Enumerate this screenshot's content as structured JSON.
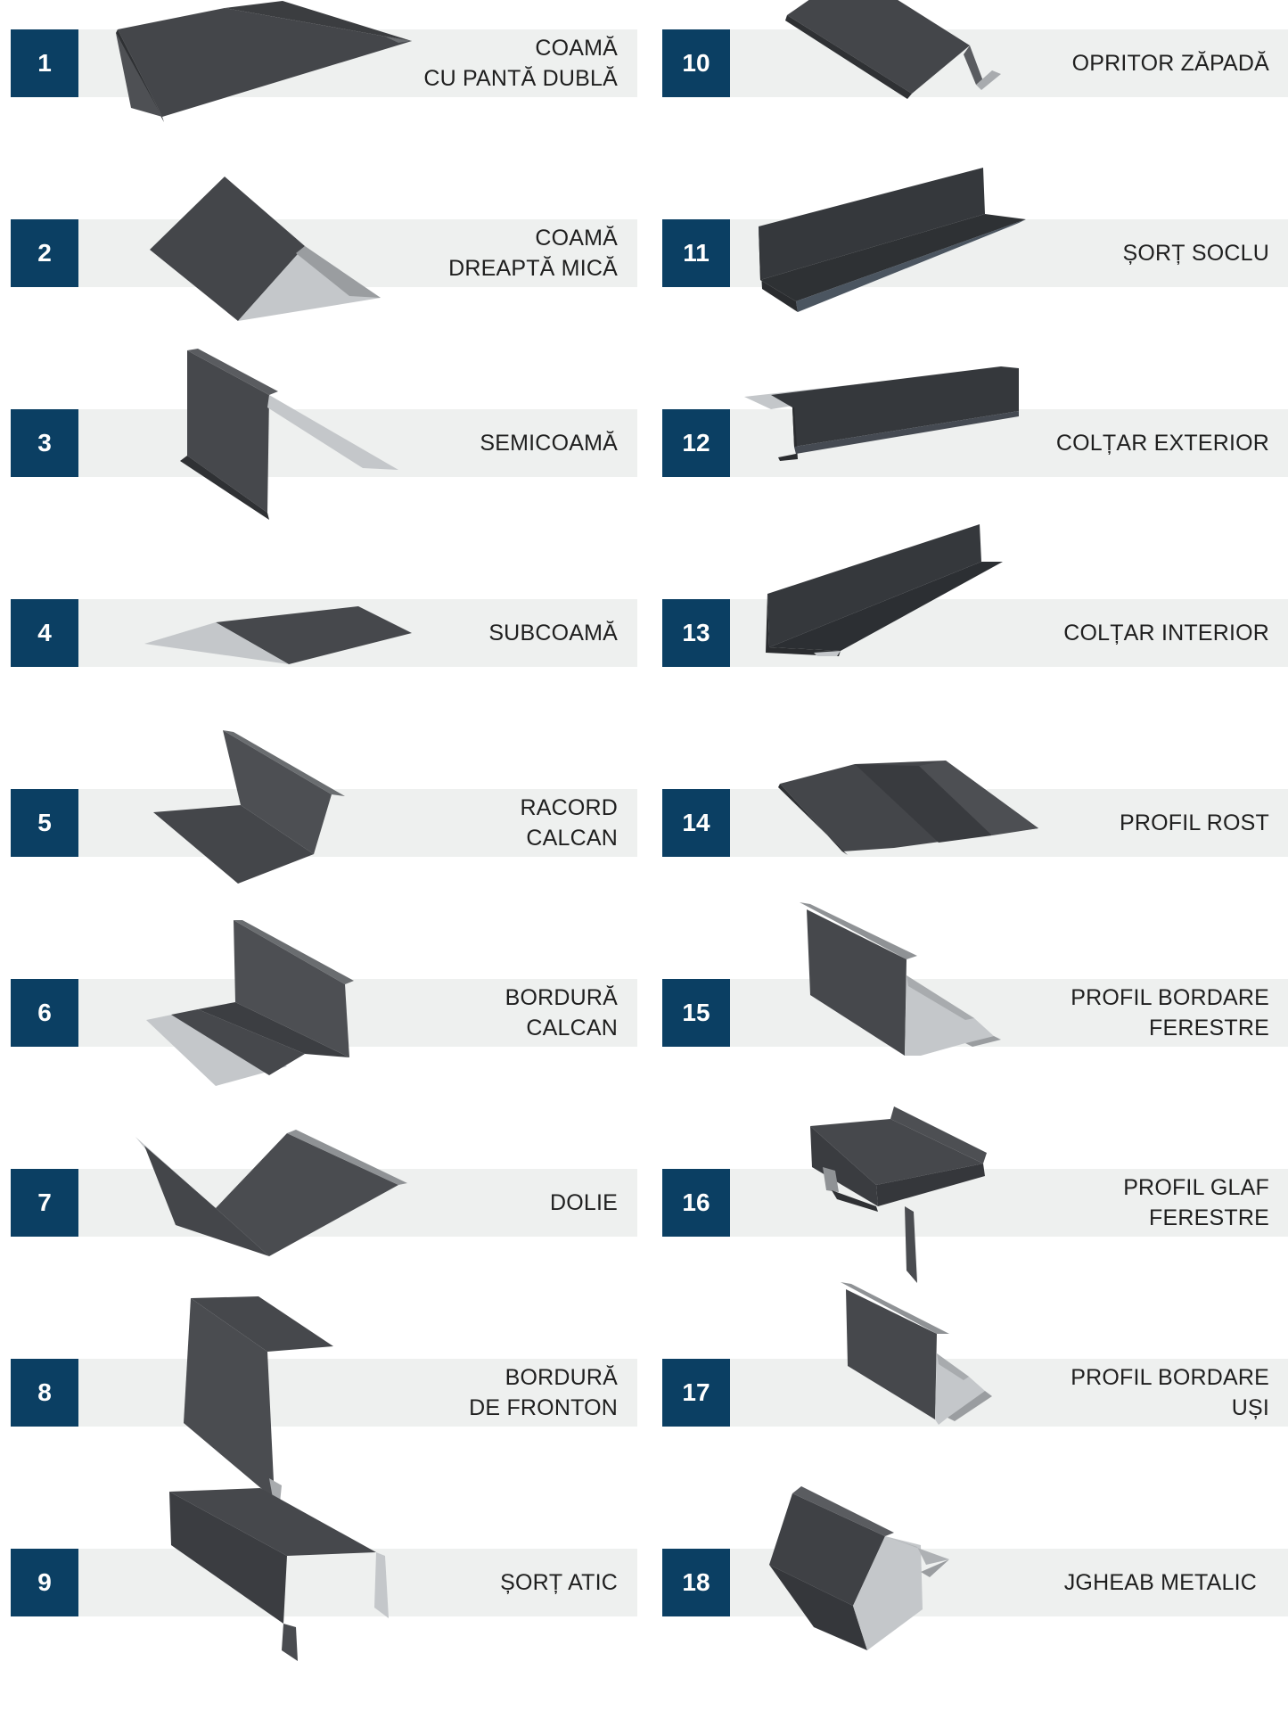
{
  "colors": {
    "badge": "#0b3f63",
    "band": "#eef0ef",
    "metal_dark": "#3d3f42",
    "metal_mid": "#4a4c4f",
    "metal_light": "#c4c7ca"
  },
  "products": [
    {
      "number": "1",
      "label_lines": [
        "COAMĂ",
        "CU PANTĂ DUBLĂ"
      ],
      "icon": "double-slope-ridge-icon"
    },
    {
      "number": "2",
      "label_lines": [
        "COAMĂ",
        "DREAPTĂ MICĂ"
      ],
      "icon": "small-straight-ridge-icon"
    },
    {
      "number": "3",
      "label_lines": [
        "SEMICOAMĂ"
      ],
      "icon": "half-ridge-icon"
    },
    {
      "number": "4",
      "label_lines": [
        "SUBCOAMĂ"
      ],
      "icon": "sub-ridge-icon"
    },
    {
      "number": "5",
      "label_lines": [
        "RACORD",
        "CALCAN"
      ],
      "icon": "gable-connector-icon"
    },
    {
      "number": "6",
      "label_lines": [
        "BORDURĂ",
        "CALCAN"
      ],
      "icon": "gable-border-icon"
    },
    {
      "number": "7",
      "label_lines": [
        "DOLIE"
      ],
      "icon": "valley-icon"
    },
    {
      "number": "8",
      "label_lines": [
        "BORDURĂ",
        "DE FRONTON"
      ],
      "icon": "fronton-border-icon"
    },
    {
      "number": "9",
      "label_lines": [
        "ȘORȚ ATIC"
      ],
      "icon": "attic-apron-icon"
    },
    {
      "number": "10",
      "label_lines": [
        "OPRITOR ZĂPADĂ"
      ],
      "icon": "snow-stopper-icon"
    },
    {
      "number": "11",
      "label_lines": [
        "ȘORȚ SOCLU"
      ],
      "icon": "plinth-apron-icon"
    },
    {
      "number": "12",
      "label_lines": [
        "COLȚAR EXTERIOR"
      ],
      "icon": "exterior-corner-icon"
    },
    {
      "number": "13",
      "label_lines": [
        "COLȚAR INTERIOR"
      ],
      "icon": "interior-corner-icon"
    },
    {
      "number": "14",
      "label_lines": [
        "PROFIL ROST"
      ],
      "icon": "joint-profile-icon"
    },
    {
      "number": "15",
      "label_lines": [
        "PROFIL BORDARE",
        "FERESTRE"
      ],
      "icon": "window-trim-profile-icon"
    },
    {
      "number": "16",
      "label_lines": [
        "PROFIL GLAF",
        "FERESTRE"
      ],
      "icon": "window-sill-profile-icon"
    },
    {
      "number": "17",
      "label_lines": [
        "PROFIL BORDARE",
        "UȘI"
      ],
      "icon": "door-trim-profile-icon"
    },
    {
      "number": "18",
      "label_lines": [
        "JGHEAB METALIC"
      ],
      "icon": "metal-gutter-icon"
    }
  ]
}
